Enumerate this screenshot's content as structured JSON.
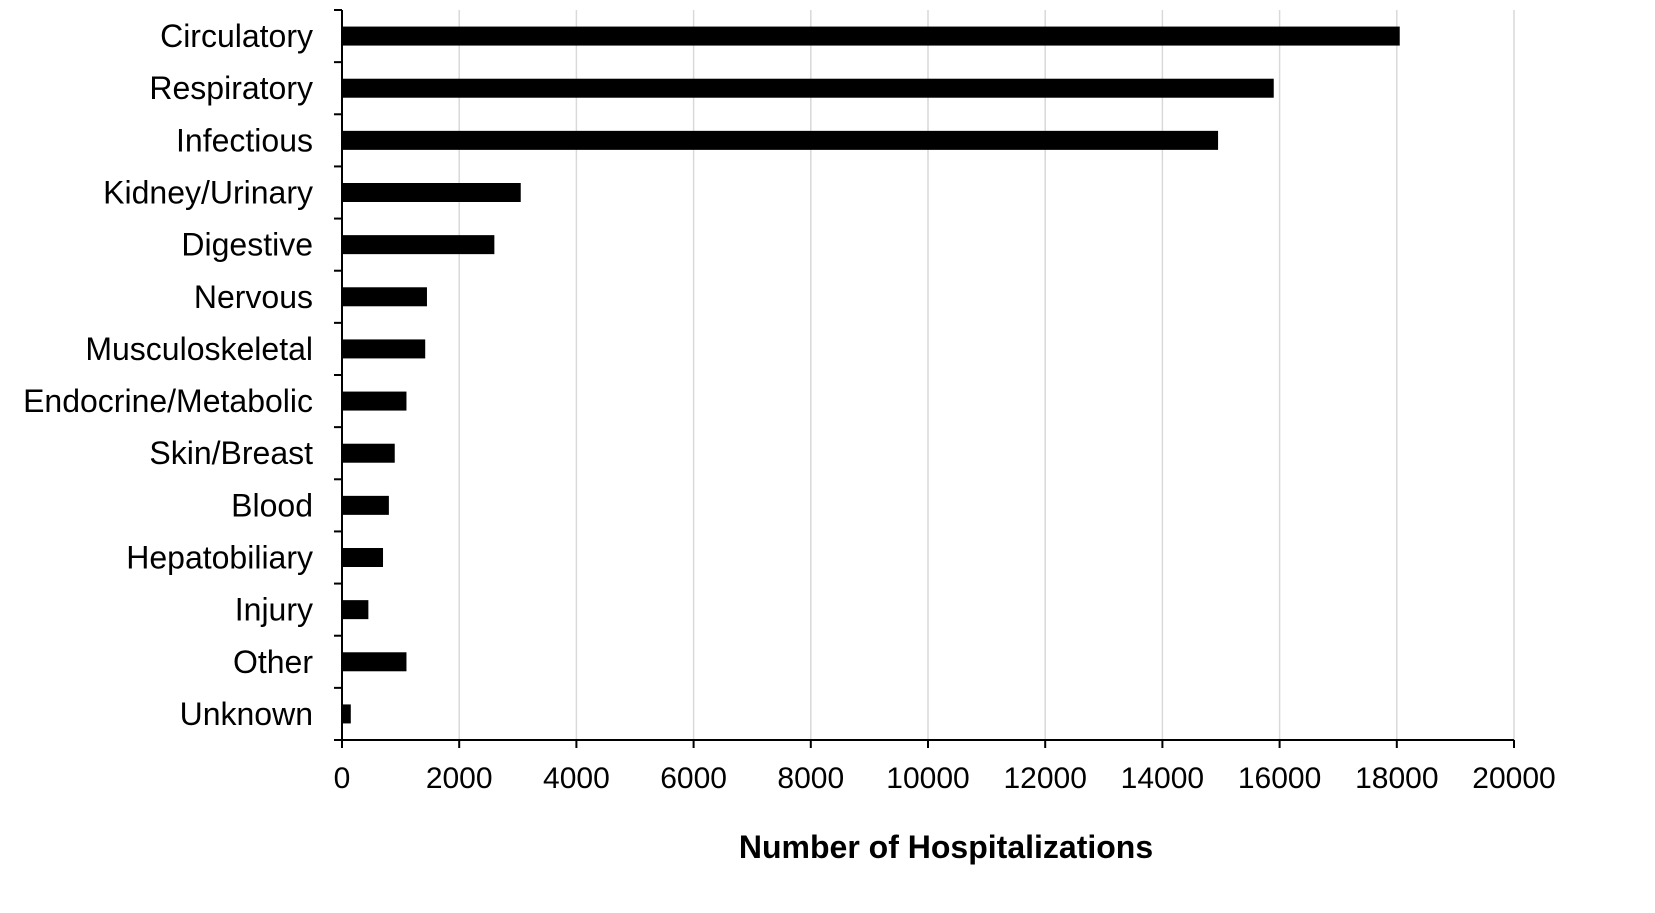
{
  "chart_data": {
    "type": "bar",
    "orientation": "horizontal",
    "categories": [
      "Circulatory",
      "Respiratory",
      "Infectious",
      "Kidney/Urinary",
      "Digestive",
      "Nervous",
      "Musculoskeletal",
      "Endocrine/Metabolic",
      "Skin/Breast",
      "Blood",
      "Hepatobiliary",
      "Injury",
      "Other",
      "Unknown"
    ],
    "values": [
      18050,
      15900,
      14950,
      3050,
      2600,
      1450,
      1420,
      1100,
      900,
      800,
      700,
      450,
      1100,
      150
    ],
    "xlabel": "Number of Hospitalizations",
    "ylabel": "",
    "xlim": [
      0,
      20000
    ],
    "xticks": [
      "0",
      "2000",
      "4000",
      "6000",
      "8000",
      "10000",
      "12000",
      "14000",
      "16000",
      "18000",
      "20000"
    ],
    "grid": "vertical",
    "bar_color": "#000000",
    "grid_color": "#d9d9d9"
  }
}
